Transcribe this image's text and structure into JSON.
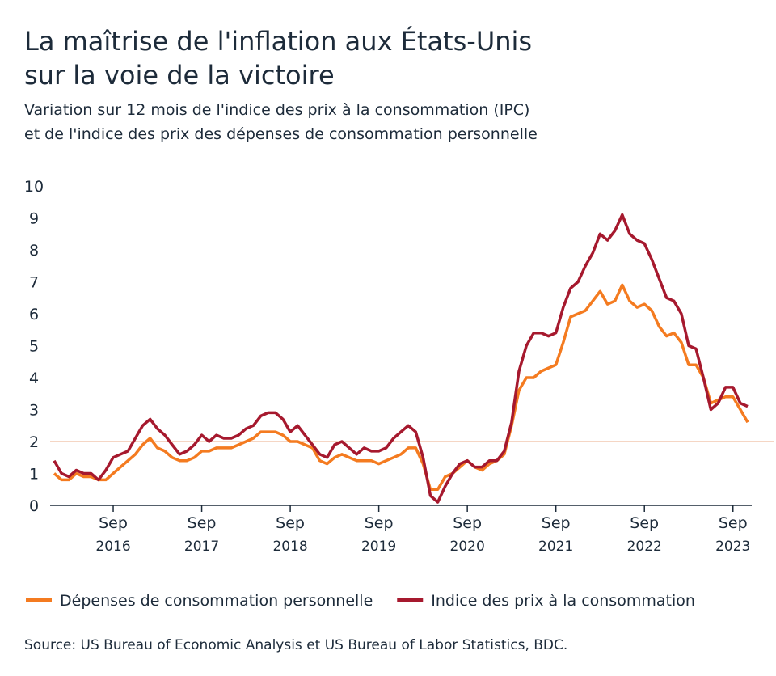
{
  "chart_data": {
    "type": "line",
    "title": [
      "La maîtrise de l'inflation aux États-Unis",
      "sur la voie de la victoire"
    ],
    "subtitle": [
      "Variation sur 12 mois de l'indice des prix à la consommation (IPC)",
      "et de l'indice des prix des dépenses de consommation personnelle"
    ],
    "source": "Source: US Bureau of Economic Analysis et US Bureau of Labor Statistics, BDC.",
    "categories": [
      null,
      null,
      null,
      null,
      null,
      null,
      null,
      null,
      "Sep 2016",
      null,
      null,
      null,
      null,
      null,
      null,
      null,
      null,
      null,
      null,
      null,
      "Sep 2017",
      null,
      null,
      null,
      null,
      null,
      null,
      null,
      null,
      null,
      null,
      null,
      "Sep 2018",
      null,
      null,
      null,
      null,
      null,
      null,
      null,
      null,
      null,
      null,
      null,
      "Sep 2019",
      null,
      null,
      null,
      null,
      null,
      null,
      null,
      null,
      null,
      null,
      null,
      "Sep 2020",
      null,
      null,
      null,
      null,
      null,
      null,
      null,
      null,
      null,
      null,
      null,
      "Sep 2021",
      null,
      null,
      null,
      null,
      null,
      null,
      null,
      null,
      null,
      null,
      null,
      "Sep 2022",
      null,
      null,
      null,
      null,
      null,
      null,
      null,
      null,
      null,
      null,
      null,
      "Sep 2023",
      null,
      null
    ],
    "series": [
      {
        "name": "Dépenses de consommation personnelle",
        "color": "#f47b20",
        "values": [
          1.0,
          0.8,
          0.8,
          1.0,
          0.9,
          0.9,
          0.8,
          0.8,
          1.0,
          1.2,
          1.4,
          1.6,
          1.9,
          2.1,
          1.8,
          1.7,
          1.5,
          1.4,
          1.4,
          1.5,
          1.7,
          1.7,
          1.8,
          1.8,
          1.8,
          1.9,
          2.0,
          2.1,
          2.3,
          2.3,
          2.3,
          2.2,
          2.0,
          2.0,
          1.9,
          1.8,
          1.4,
          1.3,
          1.5,
          1.6,
          1.5,
          1.4,
          1.4,
          1.4,
          1.3,
          1.4,
          1.5,
          1.6,
          1.8,
          1.8,
          1.3,
          0.5,
          0.5,
          0.9,
          1.0,
          1.2,
          1.4,
          1.2,
          1.1,
          1.3,
          1.4,
          1.6,
          2.5,
          3.6,
          4.0,
          4.0,
          4.2,
          4.3,
          4.4,
          5.1,
          5.9,
          6.0,
          6.1,
          6.4,
          6.7,
          6.3,
          6.4,
          6.9,
          6.4,
          6.2,
          6.3,
          6.1,
          5.6,
          5.3,
          5.4,
          5.1,
          4.4,
          4.4,
          4.0,
          3.2,
          3.3,
          3.4,
          3.4,
          3.0,
          2.6
        ]
      },
      {
        "name": "Indice des prix à la consommation",
        "color": "#a6192e",
        "values": [
          1.4,
          1.0,
          0.9,
          1.1,
          1.0,
          1.0,
          0.8,
          1.1,
          1.5,
          1.6,
          1.7,
          2.1,
          2.5,
          2.7,
          2.4,
          2.2,
          1.9,
          1.6,
          1.7,
          1.9,
          2.2,
          2.0,
          2.2,
          2.1,
          2.1,
          2.2,
          2.4,
          2.5,
          2.8,
          2.9,
          2.9,
          2.7,
          2.3,
          2.5,
          2.2,
          1.9,
          1.6,
          1.5,
          1.9,
          2.0,
          1.8,
          1.6,
          1.8,
          1.7,
          1.7,
          1.8,
          2.1,
          2.3,
          2.5,
          2.3,
          1.5,
          0.3,
          0.1,
          0.6,
          1.0,
          1.3,
          1.4,
          1.2,
          1.2,
          1.4,
          1.4,
          1.7,
          2.6,
          4.2,
          5.0,
          5.4,
          5.4,
          5.3,
          5.4,
          6.2,
          6.8,
          7.0,
          7.5,
          7.9,
          8.5,
          8.3,
          8.6,
          9.1,
          8.5,
          8.3,
          8.2,
          7.7,
          7.1,
          6.5,
          6.4,
          6.0,
          5.0,
          4.9,
          4.0,
          3.0,
          3.2,
          3.7,
          3.7,
          3.2,
          3.1
        ]
      }
    ],
    "ylim": [
      0,
      10
    ],
    "yticks": [
      0,
      1,
      2,
      3,
      4,
      5,
      6,
      7,
      8,
      9,
      10
    ],
    "reference_line": {
      "value": 2,
      "color": "#f2c9b0"
    },
    "grid": false,
    "legend": "bottom"
  }
}
